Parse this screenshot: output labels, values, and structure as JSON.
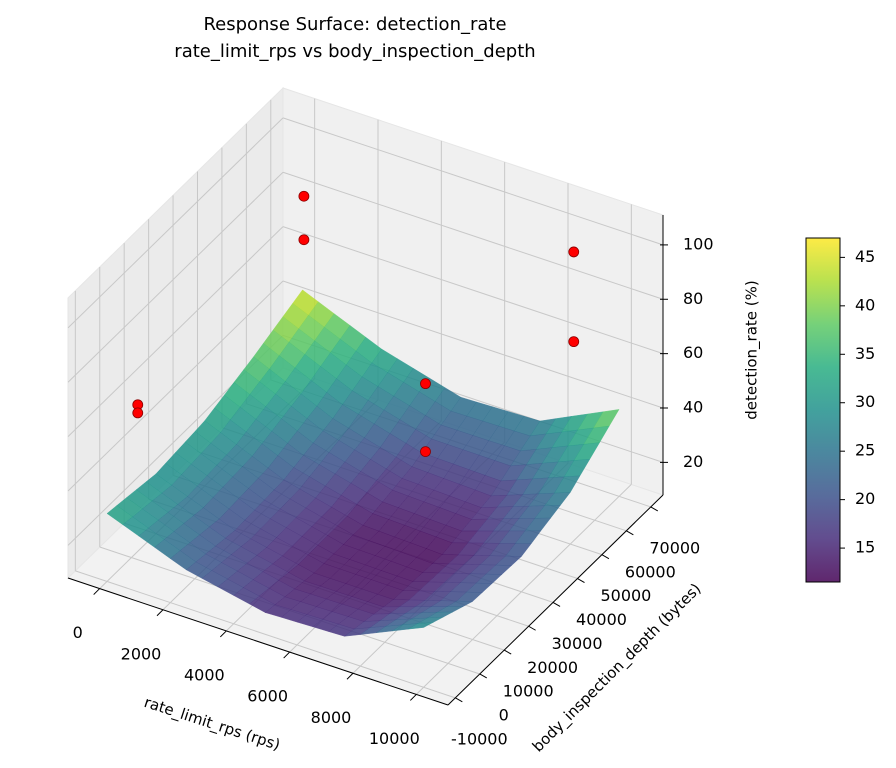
{
  "chart_data": {
    "type": "surface3d",
    "title": "Response Surface: detection_rate",
    "subtitle": "rate_limit_rps vs body_inspection_depth",
    "x_label": "rate_limit_rps (rps)",
    "y_label": "body_inspection_depth (bytes)",
    "z_label": "detection_rate (%)",
    "xlim": [
      -1000,
      11000
    ],
    "ylim": [
      -13000,
      75000
    ],
    "zlim": [
      8,
      111
    ],
    "xticks": [
      0,
      2000,
      4000,
      6000,
      8000,
      10000
    ],
    "yticks": [
      -10000,
      0,
      10000,
      20000,
      30000,
      40000,
      50000,
      60000,
      70000
    ],
    "zticks": [
      20,
      40,
      60,
      80,
      100
    ],
    "grid": true,
    "surface": {
      "colormap": "viridis",
      "x": [
        0,
        2500,
        5000,
        7500,
        10000
      ],
      "y": [
        -10000,
        10000,
        30000,
        50000,
        70000
      ],
      "z": [
        [
          33,
          22,
          16,
          17,
          30
        ],
        [
          30,
          19,
          13,
          13,
          22
        ],
        [
          32,
          20,
          13,
          12,
          21
        ],
        [
          38,
          25,
          17,
          16,
          27
        ],
        [
          45,
          33,
          25,
          26,
          40
        ]
      ]
    },
    "points": {
      "color": "#ff0000",
      "x": [
        200,
        200,
        200,
        200,
        6200,
        6200,
        9200,
        9200
      ],
      "y": [
        68000,
        68000,
        0,
        0,
        40000,
        40000,
        61800,
        61800
      ],
      "z": [
        82,
        66,
        65,
        62,
        61,
        36,
        102,
        69
      ]
    },
    "colorbar": {
      "lim": [
        11.5,
        47
      ],
      "ticks": [
        15,
        20,
        25,
        30,
        35,
        40,
        45
      ]
    }
  }
}
